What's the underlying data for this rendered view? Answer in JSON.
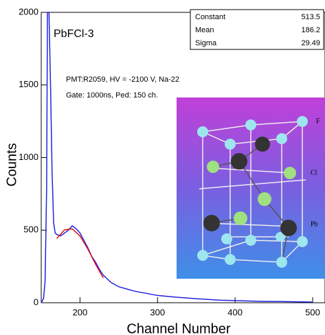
{
  "chart_data": {
    "type": "line",
    "xlabel": "Channel Number",
    "ylabel": "Counts",
    "annotations": [
      "PbFCl-3",
      "PMT:R2059, HV = -2100 V, Na-22",
      "Gate: 1000ns, Ped: 150 ch."
    ],
    "xlim": [
      150,
      500
    ],
    "ylim": [
      0,
      2000
    ],
    "xticks": [
      200,
      300,
      400,
      500
    ],
    "yticks": [
      0,
      500,
      1000,
      1500,
      2000
    ],
    "series": [
      {
        "color": "#2222dd",
        "x": [
          150,
          153,
          155,
          157,
          158,
          160,
          162,
          164,
          166,
          168,
          170,
          175,
          180,
          185,
          190,
          195,
          200,
          205,
          210,
          215,
          220,
          225,
          230,
          240,
          250,
          260,
          270,
          280,
          300,
          320,
          350,
          380,
          400,
          430,
          460,
          500
        ],
        "values": [
          0,
          30,
          150,
          800,
          2000,
          2000,
          1500,
          900,
          550,
          480,
          470,
          460,
          480,
          500,
          530,
          510,
          480,
          430,
          380,
          320,
          280,
          230,
          190,
          140,
          110,
          95,
          80,
          70,
          50,
          40,
          28,
          18,
          15,
          10,
          8,
          5
        ]
      },
      {
        "color": "#dd1111",
        "x": [
          170,
          180,
          190,
          200,
          210,
          220,
          230
        ],
        "values": [
          442,
          502,
          509,
          460,
          371,
          266,
          171
        ]
      }
    ],
    "stats": [
      {
        "label": "Constant",
        "value": 513.5
      },
      {
        "label": "Mean",
        "value": 186.2
      },
      {
        "label": "Sigma",
        "value": 29.49
      }
    ],
    "inset": {
      "labels": [
        "F",
        "Cl",
        "Pb"
      ]
    }
  }
}
